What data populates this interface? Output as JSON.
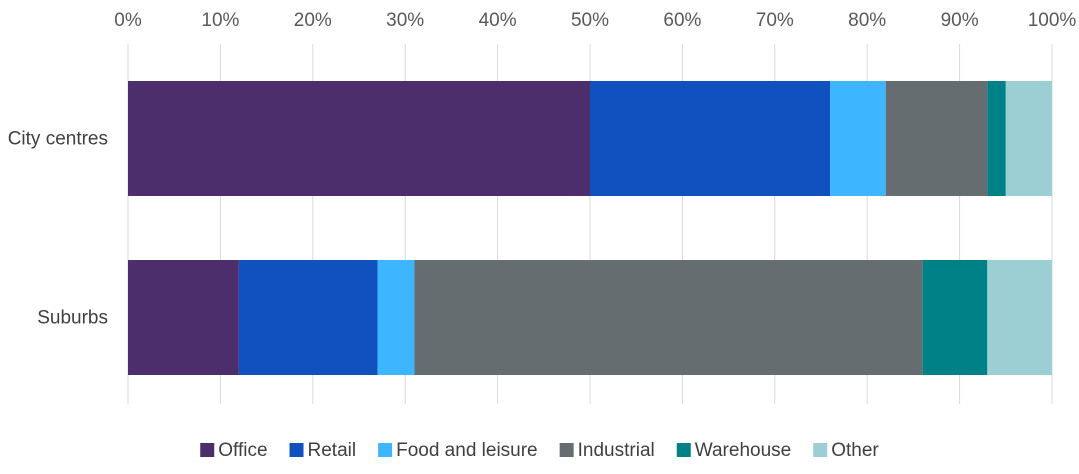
{
  "chart_data": {
    "type": "bar",
    "orientation": "horizontal",
    "stacked": "percent",
    "categories": [
      "City centres",
      "Suburbs"
    ],
    "series": [
      {
        "name": "Office",
        "color": "#4b2e6b",
        "values": [
          50,
          12
        ]
      },
      {
        "name": "Retail",
        "color": "#1150bf",
        "values": [
          26,
          15
        ]
      },
      {
        "name": "Food and leisure",
        "color": "#3db5ff",
        "values": [
          6,
          4
        ]
      },
      {
        "name": "Industrial",
        "color": "#656d70",
        "values": [
          11,
          55
        ]
      },
      {
        "name": "Warehouse",
        "color": "#008087",
        "values": [
          2,
          7
        ]
      },
      {
        "name": "Other",
        "color": "#9ccfd3",
        "values": [
          5,
          7
        ]
      }
    ],
    "xlim": [
      0,
      100
    ],
    "x_ticks": [
      "0%",
      "10%",
      "20%",
      "30%",
      "40%",
      "50%",
      "60%",
      "70%",
      "80%",
      "90%",
      "100%"
    ],
    "x_axis_position": "top",
    "grid": true,
    "legend_position": "bottom"
  }
}
